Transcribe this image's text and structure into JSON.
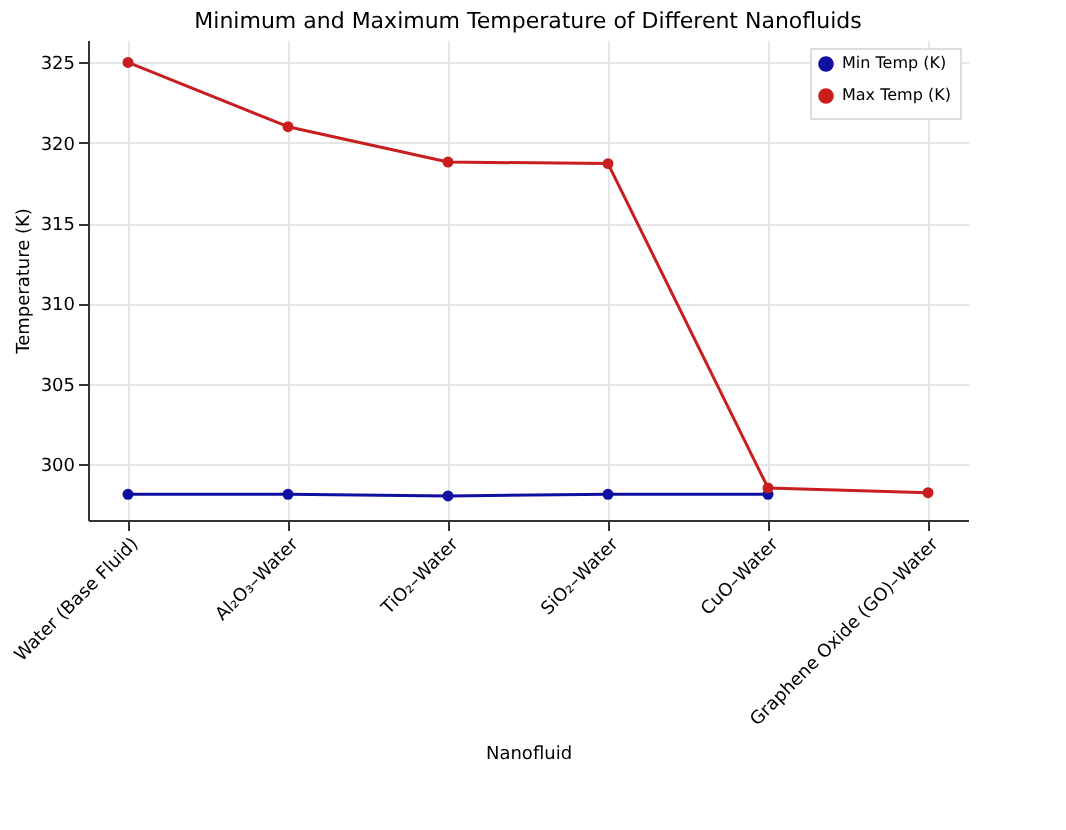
{
  "chart_data": {
    "type": "line",
    "title": "Minimum and Maximum Temperature of Different Nanofluids",
    "xlabel": "Nanofluid",
    "ylabel": "Temperature (K)",
    "categories": [
      "Water (Base Fluid)",
      "Al₂O₃–Water",
      "TiO₂–Water",
      "SiO₂–Water",
      "CuO–Water",
      "Graphene Oxide (GO)–Water"
    ],
    "series": [
      {
        "name": "Min Temp (K)",
        "color": "#1010a0",
        "values": [
          298.1,
          298.1,
          298.0,
          298.1,
          298.1,
          null
        ]
      },
      {
        "name": "Max Temp (K)",
        "color": "#c81e1e",
        "values": [
          325.0,
          321.0,
          318.8,
          318.7,
          298.5,
          298.2
        ]
      }
    ],
    "ylim": [
      296.5,
      326.4
    ],
    "yticks": [
      300,
      305,
      310,
      315,
      320,
      325
    ],
    "grid": true,
    "legend": "top right",
    "marker": "circle",
    "line_style": "solid"
  }
}
